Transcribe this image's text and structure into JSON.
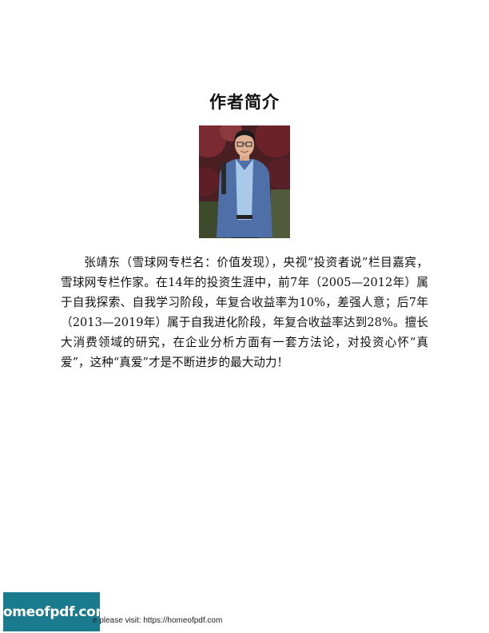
{
  "page": {
    "title": "作者简介",
    "bio": "张靖东（雪球网专栏名：价值发现），央视“投资者说”栏目嘉宾，雪球网专栏作家。在14年的投资生涯中，前7年（2005—2012年）属于自我探索、自我学习阶段，年复合收益率为10%，差强人意；后7年（2013—2019年）属于自我进化阶段，年复合收益率达到28%。擅长大消费领域的研究，在企业分析方面有一套方法论，对投资心怀“真爱”，这种“真爱”才是不断进步的最大动力！"
  },
  "footer": {
    "badge": "homeofpdf.com",
    "note": "e please visit: https://homeofpdf.com"
  }
}
